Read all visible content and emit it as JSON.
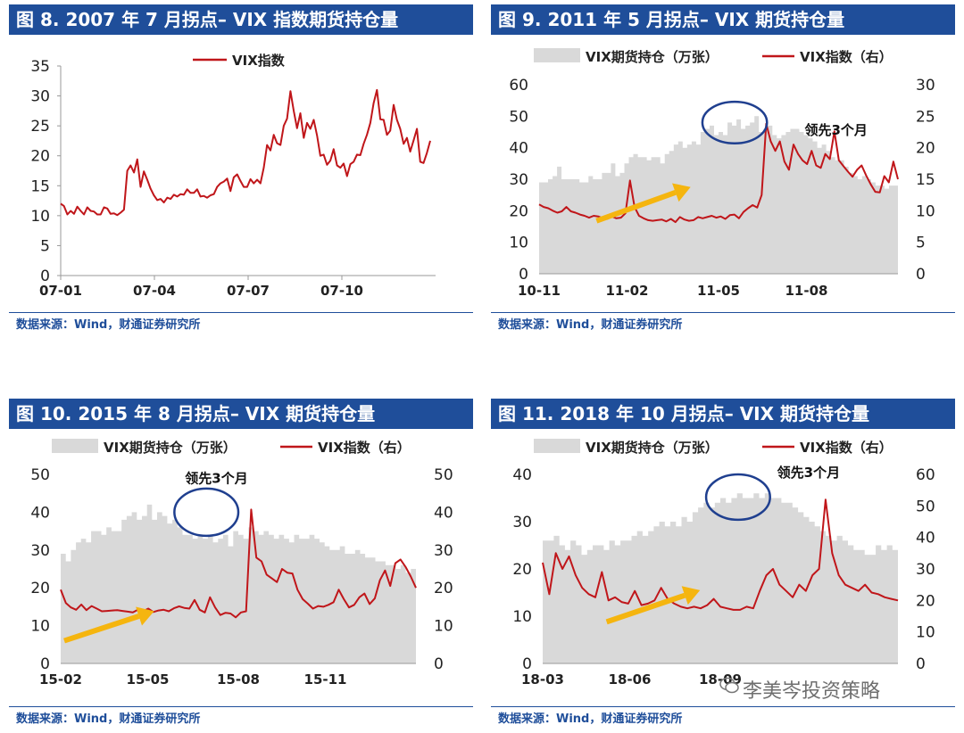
{
  "colors": {
    "title_bg": "#1f4e9a",
    "vix": "#c0161a",
    "holdings": "#d9d9d9",
    "arrow": "#f5b50f",
    "circle": "#1f3f8f"
  },
  "source_text": "数据来源：Wind，财通证券研究所",
  "watermark": "李美岑投资策略",
  "chart_data": [
    {
      "id": "fig8",
      "title": "图 8. 2007 年 7 月拐点– VIX 指数期货持仓量",
      "type": "line",
      "legend": {
        "vix": "VIX指数"
      },
      "yleft": {
        "min": 0,
        "max": 35,
        "ticks": [
          0,
          5,
          10,
          15,
          20,
          25,
          30,
          35
        ]
      },
      "xticks": [
        "07-01",
        "07-04",
        "07-07",
        "07-10"
      ],
      "vix": [
        12,
        11.6,
        10.2,
        10.8,
        10.3,
        11.5,
        10.8,
        10.2,
        11.4,
        10.8,
        10.7,
        10.2,
        10.2,
        11.4,
        11.2,
        10.3,
        10.4,
        10.1,
        10.5,
        11.0,
        17.5,
        18.4,
        17.2,
        19.4,
        14.8,
        17.4,
        16.0,
        14.5,
        13.4,
        12.6,
        12.8,
        12.2,
        13.0,
        12.8,
        13.5,
        13.2,
        13.6,
        13.5,
        14.4,
        13.8,
        13.8,
        14.4,
        13.2,
        13.3,
        13.0,
        13.4,
        13.6,
        14.8,
        15.4,
        15.7,
        16.2,
        14.1,
        16.4,
        16.9,
        15.8,
        14.8,
        14.8,
        16.1,
        15.4,
        16.0,
        15.4,
        18.0,
        21.8,
        20.9,
        23.5,
        22.1,
        21.8,
        25.0,
        26.2,
        30.8,
        27.5,
        24.6,
        27.1,
        23.0,
        25.5,
        24.5,
        26.0,
        23.4,
        20.0,
        20.2,
        18.5,
        19.2,
        21.1,
        18.4,
        18.0,
        18.7,
        16.6,
        18.6,
        19.0,
        20.2,
        20.1,
        22.0,
        23.5,
        25.5,
        28.8,
        31.0,
        26.1,
        26.0,
        23.5,
        24.2,
        28.5,
        26.0,
        24.5,
        22.0,
        23.0,
        20.7,
        22.6,
        24.5,
        19.0,
        18.8,
        20.5,
        22.5
      ],
      "annotations": []
    },
    {
      "id": "fig9",
      "title": "图 9. 2011 年 5 月拐点– VIX 期货持仓量",
      "type": "area",
      "legend": {
        "holdings": "VIX期货持仓（万张）",
        "vix": "VIX指数（右）"
      },
      "yleft": {
        "min": 0,
        "max": 60,
        "ticks": [
          0,
          10,
          20,
          30,
          40,
          50,
          60
        ]
      },
      "yright": {
        "min": 0,
        "max": 30,
        "ticks": [
          0,
          5,
          10,
          15,
          20,
          25,
          30
        ]
      },
      "xticks": [
        "10-11",
        "11-02",
        "11-05",
        "11-08"
      ],
      "holdings": [
        29,
        29,
        30,
        31,
        34,
        30,
        30,
        30,
        30,
        29,
        29,
        31,
        30,
        30,
        32,
        32,
        35,
        31,
        32,
        35,
        37,
        38,
        37,
        37,
        36,
        37,
        37,
        35,
        38,
        39,
        41,
        42,
        40,
        41,
        42,
        41,
        45,
        46,
        47,
        44,
        45,
        44,
        48,
        47,
        49,
        46,
        47,
        48,
        50,
        45,
        46,
        47,
        44,
        43,
        44,
        45,
        46,
        46,
        45,
        44,
        43,
        42,
        40,
        41,
        39,
        37,
        36,
        36,
        34,
        32,
        31,
        30,
        31,
        30,
        29,
        28,
        28,
        27,
        28,
        28
      ],
      "vix": [
        11.0,
        10.6,
        10.4,
        10.0,
        9.7,
        9.9,
        10.6,
        9.9,
        9.7,
        9.4,
        9.2,
        8.9,
        9.2,
        9.1,
        8.8,
        8.7,
        9.1,
        8.8,
        8.9,
        9.6,
        14.8,
        10.6,
        9.2,
        8.8,
        8.5,
        8.4,
        8.5,
        8.6,
        8.3,
        8.7,
        8.2,
        9.0,
        8.6,
        8.4,
        8.5,
        9.0,
        8.8,
        9.0,
        9.2,
        8.9,
        9.1,
        8.7,
        9.3,
        9.4,
        8.8,
        9.8,
        10.4,
        10.9,
        10.5,
        12.5,
        23.8,
        21.0,
        19.5,
        21.0,
        17.8,
        16.5,
        20.5,
        19.0,
        18.0,
        17.4,
        19.5,
        17.2,
        16.8,
        19.0,
        18.2,
        22.6,
        18.0,
        17.1,
        16.2,
        15.4,
        16.5,
        17.2,
        15.6,
        14.2,
        13.0,
        12.9,
        15.5,
        14.5,
        17.8,
        15.0
      ],
      "annotations": [
        "领先3个月"
      ]
    },
    {
      "id": "fig10",
      "title": "图 10. 2015 年 8 月拐点– VIX 期货持仓量",
      "type": "area",
      "legend": {
        "holdings": "VIX期货持仓（万张）",
        "vix": "VIX指数（右）"
      },
      "yleft": {
        "min": 0,
        "max": 50,
        "ticks": [
          0,
          10,
          20,
          30,
          40,
          50
        ]
      },
      "yright": {
        "min": 0,
        "max": 50,
        "ticks": [
          0,
          10,
          20,
          30,
          40,
          50
        ]
      },
      "xticks": [
        "15-02",
        "15-05",
        "15-08",
        "15-11"
      ],
      "holdings": [
        29,
        27,
        30,
        32,
        33,
        32,
        35,
        35,
        34,
        36,
        35,
        35,
        38,
        39,
        40,
        38,
        39,
        42,
        38,
        40,
        39,
        37,
        38,
        36,
        34,
        34,
        33,
        34,
        33,
        34,
        32,
        33,
        34,
        31,
        35,
        34,
        33,
        36,
        35,
        34,
        35,
        34,
        33,
        34,
        33,
        32,
        34,
        33,
        33,
        34,
        33,
        32,
        31,
        30,
        30,
        31,
        29,
        29,
        30,
        29,
        28,
        28,
        27,
        27,
        26,
        26,
        25,
        26,
        24,
        25
      ],
      "vix": [
        19.5,
        16.0,
        14.8,
        14.2,
        15.6,
        14.1,
        15.2,
        14.5,
        13.8,
        13.9,
        14.0,
        14.1,
        13.9,
        13.7,
        13.5,
        14.2,
        13.8,
        14.5,
        13.6,
        14.0,
        14.2,
        13.8,
        14.6,
        15.1,
        14.7,
        14.5,
        16.8,
        14.2,
        13.5,
        17.5,
        14.8,
        12.8,
        13.4,
        13.2,
        12.2,
        13.5,
        13.8,
        40.7,
        28.0,
        27.0,
        23.5,
        22.5,
        21.5,
        25.0,
        24.0,
        23.8,
        19.5,
        17.0,
        15.8,
        14.5,
        15.2,
        15.0,
        15.5,
        16.2,
        19.5,
        17.0,
        14.8,
        15.5,
        17.5,
        18.5,
        15.7,
        17.2,
        22.0,
        24.6,
        20.5,
        26.5,
        27.5,
        25.5,
        23.0,
        20.0
      ],
      "annotations": [
        "领先3个月"
      ]
    },
    {
      "id": "fig11",
      "title": "图 11. 2018 年 10 月拐点– VIX 期货持仓量",
      "type": "area",
      "legend": {
        "holdings": "VIX期货持仓（万张）",
        "vix": "VIX指数（右）"
      },
      "yleft": {
        "min": 0,
        "max": 40,
        "ticks": [
          0,
          10,
          20,
          30,
          40
        ]
      },
      "yright": {
        "min": 0,
        "max": 60,
        "ticks": [
          0,
          10,
          20,
          30,
          40,
          50,
          60
        ]
      },
      "xticks": [
        "18-03",
        "18-06",
        "18-09"
      ],
      "holdings": [
        26,
        26,
        27,
        25,
        24,
        26,
        25,
        23,
        24,
        25,
        25,
        24,
        26,
        25,
        26,
        26,
        27,
        28,
        27,
        28,
        29,
        30,
        29,
        30,
        29,
        31,
        30,
        32,
        33,
        34,
        33,
        34,
        35,
        34,
        35,
        36,
        35,
        35,
        36,
        35,
        36,
        35,
        35,
        34,
        34,
        33,
        32,
        31,
        30,
        29,
        28,
        27,
        26,
        27,
        26,
        25,
        24,
        24,
        23,
        23,
        25,
        24,
        25,
        24
      ],
      "vix": [
        32.0,
        22.0,
        35.0,
        30.0,
        34.0,
        28.0,
        24.0,
        22.0,
        21.0,
        29.0,
        20.0,
        21.0,
        19.5,
        19.0,
        23.0,
        18.5,
        19.0,
        20.0,
        24.0,
        20.5,
        19.0,
        18.0,
        17.5,
        18.0,
        17.5,
        18.5,
        20.5,
        18.0,
        17.5,
        17.0,
        17.0,
        18.0,
        17.5,
        23.0,
        28.0,
        30.0,
        25.0,
        23.0,
        21.0,
        25.0,
        23.0,
        28.0,
        30.0,
        52.0,
        35.0,
        28.0,
        25.0,
        24.0,
        23.0,
        25.0,
        22.5,
        22.0,
        21.0,
        20.5,
        20.0
      ],
      "annotations": [
        "领先3个月"
      ]
    }
  ]
}
